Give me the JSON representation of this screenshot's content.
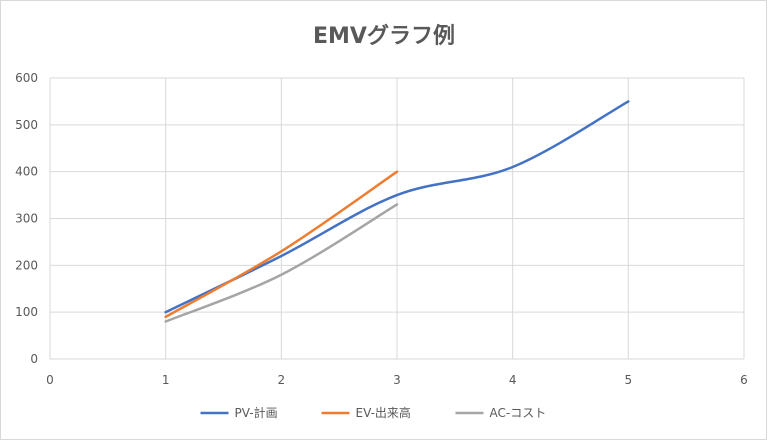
{
  "chart_data": {
    "type": "line",
    "title": "EMVグラフ例",
    "xlabel": "",
    "ylabel": "",
    "xlim": [
      0,
      6
    ],
    "ylim": [
      0,
      600
    ],
    "x_ticks": [
      0,
      1,
      2,
      3,
      4,
      5,
      6
    ],
    "y_ticks": [
      0,
      100,
      200,
      300,
      400,
      500,
      600
    ],
    "grid": true,
    "smooth": true,
    "legend_position": "bottom",
    "series": [
      {
        "name": "PV-計画",
        "color": "#4472c4",
        "x": [
          1,
          2,
          3,
          4,
          5
        ],
        "y": [
          100,
          220,
          350,
          410,
          550
        ]
      },
      {
        "name": "EV-出来高",
        "color": "#ed7d31",
        "x": [
          1,
          2,
          3
        ],
        "y": [
          90,
          230,
          400
        ]
      },
      {
        "name": "AC-コスト",
        "color": "#a5a5a5",
        "x": [
          1,
          2,
          3
        ],
        "y": [
          80,
          180,
          330
        ]
      }
    ]
  }
}
